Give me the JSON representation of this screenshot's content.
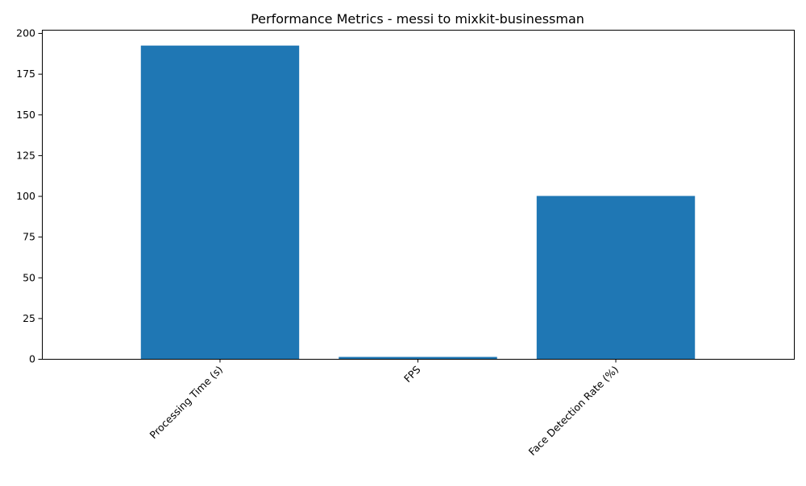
{
  "chart_data": {
    "type": "bar",
    "title": "Performance Metrics - messi to mixkit-businessman",
    "categories": [
      "Processing Time (s)",
      "FPS",
      "Face Detection Rate (%)"
    ],
    "values": [
      192.3,
      1.2,
      100
    ],
    "ylim": [
      0,
      202
    ],
    "yticks": [
      0,
      25,
      50,
      75,
      100,
      125,
      150,
      175,
      200
    ],
    "xlabel": "",
    "ylabel": "",
    "grid": false,
    "bar_color": "#1f77b4"
  }
}
